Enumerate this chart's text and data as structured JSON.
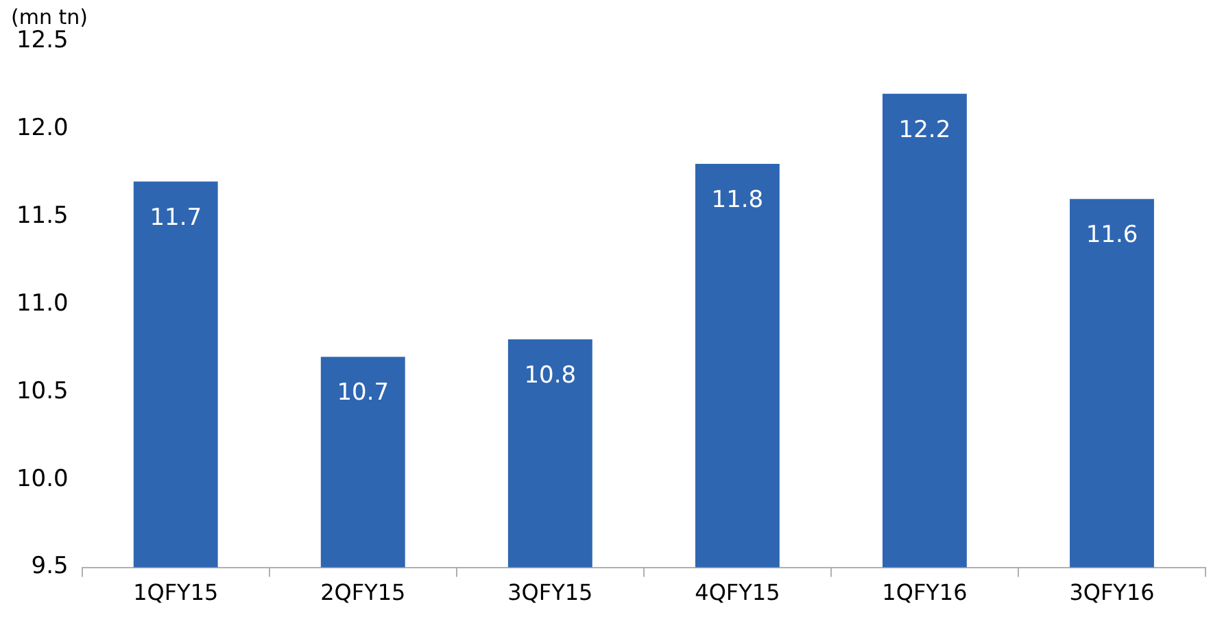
{
  "chart_data": {
    "type": "bar",
    "ylabel": "(mn tn)",
    "categories": [
      "1QFY15",
      "2QFY15",
      "3QFY15",
      "4QFY15",
      "1QFY16",
      "3QFY16"
    ],
    "values": [
      11.7,
      10.7,
      10.8,
      11.8,
      12.2,
      11.6
    ],
    "color": "#2e66b2",
    "ylim": [
      9.5,
      12.5
    ],
    "yticks": [
      {
        "value": 9.5,
        "label": "9.5"
      },
      {
        "value": 10,
        "label": "10.0"
      },
      {
        "value": 10.5,
        "label": "10.5"
      },
      {
        "value": 11,
        "label": "11.0"
      },
      {
        "value": 11.5,
        "label": "11.5"
      },
      {
        "value": 12,
        "label": "12.0"
      },
      {
        "value": 12.5,
        "label": "12.5"
      }
    ],
    "grid": false,
    "legend": false,
    "data_labels": true
  }
}
